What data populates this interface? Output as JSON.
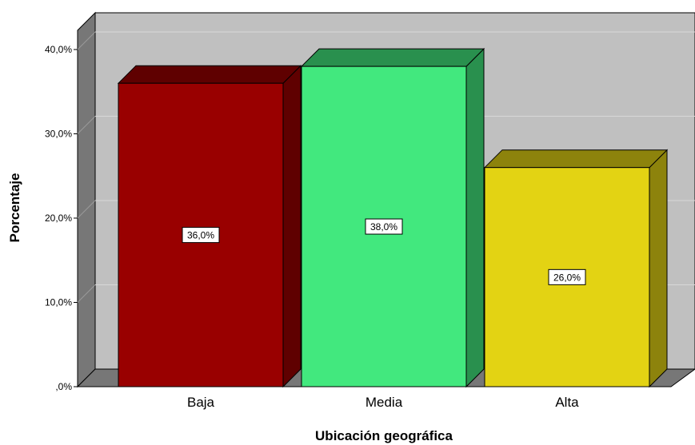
{
  "chart_data": {
    "type": "bar",
    "style": "3d",
    "categories": [
      "Baja",
      "Media",
      "Alta"
    ],
    "values": [
      36.0,
      38.0,
      26.0
    ],
    "data_labels": [
      "36,0%",
      "38,0%",
      "26,0%"
    ],
    "bar_colors": [
      "#990000",
      "#42E87E",
      "#E3D313"
    ],
    "xlabel": "Ubicación geográfica",
    "ylabel": "Porcentaje",
    "ylim": [
      0,
      40
    ],
    "yticks": [
      0,
      10,
      20,
      30,
      40
    ],
    "ytick_labels": [
      ",0%",
      "10,0%",
      "20,0%",
      "30,0%",
      "40,0%"
    ],
    "grid": true,
    "legend": "none",
    "wall_color": "#C0C0C0",
    "floor_color": "#777777"
  }
}
